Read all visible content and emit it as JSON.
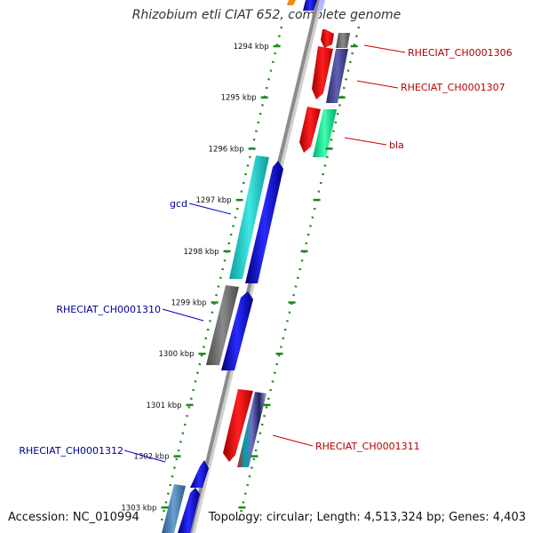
{
  "title": "Rhizobium etli CIAT 652, complete genome",
  "footer": {
    "accession": "Accession: NC_010994",
    "topology": "Topology: circular; Length: 4,513,324 bp; Genes: 4,403"
  },
  "colors": {
    "backbone": "#8c8c8c",
    "tick": "#1a8a1a",
    "label_forward": "#000099",
    "label_reverse": "#b30000"
  },
  "scale": {
    "unit": "kbp",
    "ticks": [
      {
        "label": "1294 kbp",
        "kbp": 1294
      },
      {
        "label": "1295 kbp",
        "kbp": 1295
      },
      {
        "label": "1296 kbp",
        "kbp": 1296
      },
      {
        "label": "1297 kbp",
        "kbp": 1297
      },
      {
        "label": "1298 kbp",
        "kbp": 1298
      },
      {
        "label": "1299 kbp",
        "kbp": 1299
      },
      {
        "label": "1300 kbp",
        "kbp": 1300
      },
      {
        "label": "1301 kbp",
        "kbp": 1301
      },
      {
        "label": "1302 kbp",
        "kbp": 1302
      },
      {
        "label": "1303 kbp",
        "kbp": 1303
      }
    ]
  },
  "gene_labels": [
    {
      "name": "RHECIAT_CH0001306",
      "strand": "reverse"
    },
    {
      "name": "RHECIAT_CH0001307",
      "strand": "reverse"
    },
    {
      "name": "bla",
      "strand": "reverse"
    },
    {
      "name": "gcd",
      "strand": "forward"
    },
    {
      "name": "RHECIAT_CH0001310",
      "strand": "forward"
    },
    {
      "name": "RHECIAT_CH0001311",
      "strand": "reverse"
    },
    {
      "name": "RHECIAT_CH0001312",
      "strand": "forward"
    }
  ]
}
